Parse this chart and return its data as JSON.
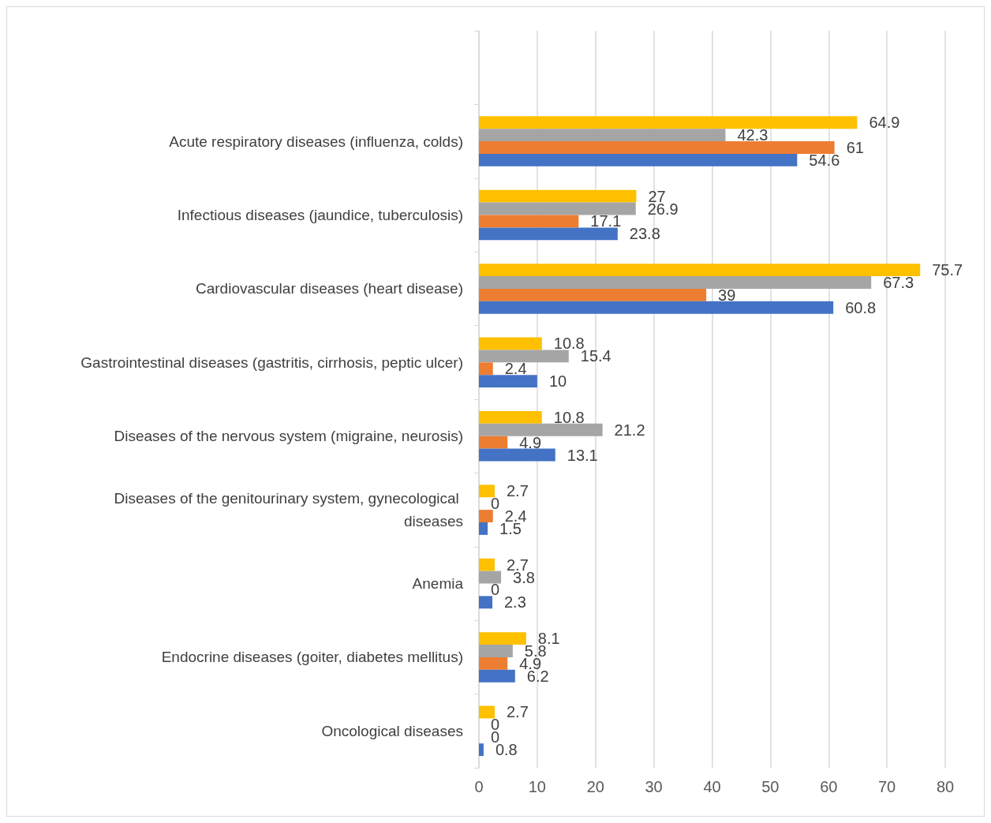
{
  "chart_data": {
    "type": "bar",
    "orientation": "horizontal",
    "categories": [
      null,
      "Acute respiratory diseases (influenza, colds)",
      "Infectious diseases (jaundice, tuberculosis)",
      "Cardiovascular diseases (heart disease)",
      "Gastrointestinal diseases (gastritis, cirrhosis, peptic ulcer)",
      "Diseases of the nervous system (migraine, neurosis)",
      "Diseases of the genitourinary system, gynecological diseases",
      "Anemia",
      "Endocrine diseases (goiter, diabetes mellitus)",
      "Oncological diseases"
    ],
    "series": [
      {
        "color": "#ffc000",
        "values": [
          null,
          64.9,
          27,
          75.7,
          10.8,
          10.8,
          2.7,
          2.7,
          8.1,
          2.7
        ]
      },
      {
        "color": "#a5a5a5",
        "values": [
          null,
          42.3,
          26.9,
          67.3,
          15.4,
          21.2,
          0,
          3.8,
          5.8,
          0
        ]
      },
      {
        "color": "#ed7d31",
        "values": [
          null,
          61,
          17.1,
          39,
          2.4,
          4.9,
          2.4,
          0,
          4.9,
          0
        ]
      },
      {
        "color": "#4472c4",
        "values": [
          null,
          54.6,
          23.8,
          60.8,
          10,
          13.1,
          1.5,
          2.3,
          6.2,
          0.8
        ]
      }
    ],
    "xlim": [
      0,
      80
    ],
    "xticks": [
      0,
      10,
      20,
      30,
      40,
      50,
      60,
      70,
      80
    ],
    "grid": "x",
    "data_labels": true
  }
}
